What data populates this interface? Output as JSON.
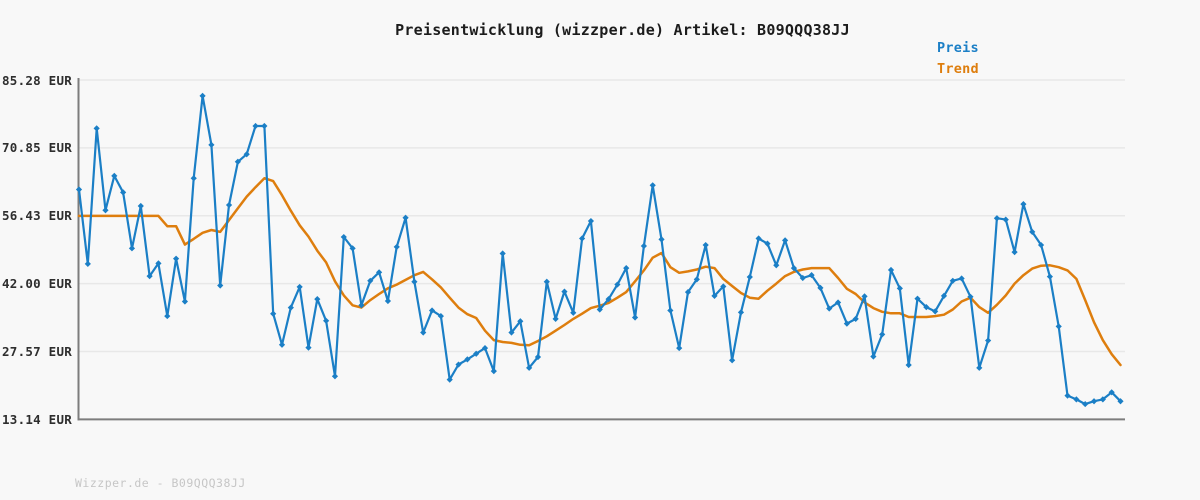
{
  "header": {
    "title": "Preisentwicklung (wizzper.de) Artikel: B09QQQ38JJ"
  },
  "legend": {
    "preis_label": "Preis",
    "trend_label": "Trend"
  },
  "footer": {
    "watermark": "Wizzper.de - B09QQQ38JJ"
  },
  "colors": {
    "preis": "#1b7fc6",
    "trend": "#de7e0e",
    "grid": "#e8e8e8",
    "axis": "#7d7d7d",
    "background": "#f8f8f8",
    "tick_label": "#2e2e2e",
    "watermark": "#c6c6c6"
  },
  "chart_data": {
    "type": "line",
    "title": "Preisentwicklung (wizzper.de) Artikel: B09QQQ38JJ",
    "xlabel": "",
    "ylabel": "EUR",
    "ylim": [
      13.14,
      85.28
    ],
    "yticks": [
      85.28,
      70.85,
      56.43,
      42.0,
      27.57,
      13.14
    ],
    "ytick_labels": [
      "85.28 EUR",
      "70.85 EUR",
      "56.43 EUR",
      "42.00 EUR",
      "27.57 EUR",
      "13.14 EUR"
    ],
    "x_tick_labels": [],
    "grid": true,
    "legend_position": "top-right",
    "series": [
      {
        "name": "Preis",
        "color": "#1b7fc6",
        "marker": "diamond",
        "values": [
          62.0,
          46.2,
          75.0,
          57.6,
          64.9,
          61.4,
          49.5,
          58.5,
          43.6,
          46.3,
          35.1,
          47.3,
          38.2,
          64.4,
          81.9,
          71.5,
          41.6,
          58.7,
          67.9,
          69.5,
          75.5,
          75.5,
          35.6,
          29.0,
          36.9,
          41.3,
          28.4,
          38.7,
          34.1,
          22.3,
          51.9,
          49.5,
          37.4,
          42.6,
          44.4,
          38.3,
          49.8,
          56.0,
          42.4,
          31.6,
          36.3,
          35.1,
          21.6,
          24.8,
          25.9,
          27.1,
          28.3,
          23.4,
          48.4,
          31.6,
          34.0,
          24.1,
          26.4,
          42.4,
          34.5,
          40.3,
          35.8,
          51.6,
          55.3,
          36.5,
          38.7,
          41.8,
          45.3,
          34.8,
          50.0,
          62.9,
          51.4,
          36.3,
          28.3,
          40.2,
          42.9,
          50.2,
          39.4,
          41.4,
          25.7,
          35.9,
          43.4,
          51.6,
          50.5,
          45.9,
          51.2,
          45.3,
          43.2,
          43.8,
          41.1,
          36.7,
          38.0,
          33.5,
          34.5,
          39.3,
          26.5,
          31.2,
          44.9,
          41.0,
          24.7,
          38.8,
          37.0,
          36.1,
          39.4,
          42.6,
          43.1,
          39.2,
          24.1,
          29.9,
          55.9,
          55.6,
          48.7,
          58.9,
          53.0,
          50.2,
          43.5,
          32.9,
          18.2,
          17.4,
          16.4,
          17.0,
          17.4,
          18.9,
          17.0
        ]
      },
      {
        "name": "Trend",
        "color": "#de7e0e",
        "marker": "none",
        "values": [
          56.4,
          56.4,
          56.4,
          56.4,
          56.4,
          56.4,
          56.4,
          56.4,
          56.4,
          56.4,
          54.2,
          54.2,
          50.3,
          51.5,
          52.8,
          53.4,
          53.0,
          55.5,
          58.0,
          60.5,
          62.5,
          64.4,
          63.8,
          60.8,
          57.5,
          54.4,
          52.0,
          49.0,
          46.5,
          42.5,
          39.5,
          37.4,
          36.9,
          38.5,
          39.8,
          41.0,
          41.8,
          42.8,
          43.8,
          44.5,
          42.9,
          41.2,
          39.0,
          36.9,
          35.5,
          34.7,
          32.0,
          30.0,
          29.6,
          29.4,
          29.0,
          28.9,
          29.8,
          30.8,
          32.0,
          33.2,
          34.5,
          35.6,
          36.8,
          37.3,
          37.9,
          39.0,
          40.2,
          42.5,
          44.8,
          47.5,
          48.5,
          45.5,
          44.3,
          44.6,
          45.0,
          45.6,
          45.3,
          43.0,
          41.5,
          40.0,
          39.0,
          38.8,
          40.5,
          42.0,
          43.6,
          44.5,
          45.0,
          45.3,
          45.3,
          45.3,
          43.2,
          40.9,
          39.8,
          38.0,
          36.8,
          36.0,
          35.7,
          35.7,
          34.9,
          34.9,
          34.9,
          35.1,
          35.4,
          36.5,
          38.2,
          39.0,
          37.0,
          35.8,
          37.5,
          39.5,
          42.0,
          43.8,
          45.2,
          45.8,
          45.9,
          45.5,
          44.8,
          43.0,
          38.5,
          33.8,
          30.0,
          27.0,
          24.7
        ]
      }
    ]
  }
}
